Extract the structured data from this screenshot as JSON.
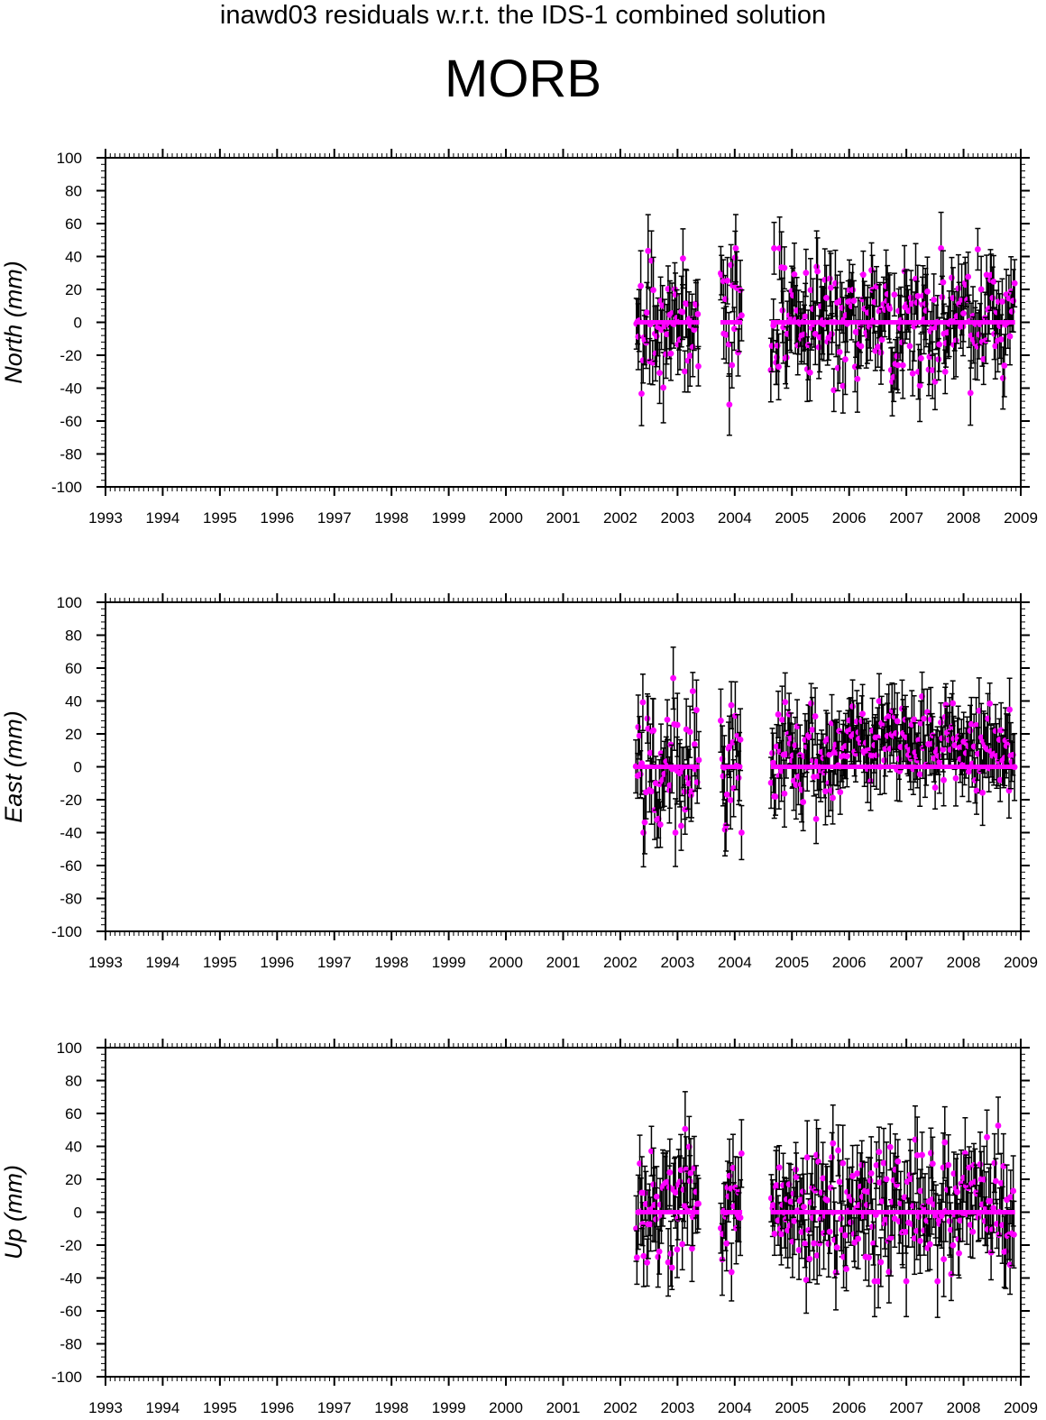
{
  "figure": {
    "supertitle": "inawd03 residuals w.r.t. the IDS-1 combined solution",
    "station": "MORB"
  },
  "colors": {
    "points": "#ff00ff",
    "errorbars": "#000000",
    "axes": "#000000"
  },
  "chart_data": [
    {
      "type": "scatter",
      "ylabel": "North (mm)",
      "xlim": [
        1993,
        2009
      ],
      "ylim": [
        -100,
        100
      ],
      "x_ticks": [
        "1993",
        "1994",
        "1995",
        "1996",
        "1997",
        "1998",
        "1999",
        "2000",
        "2001",
        "2002",
        "2003",
        "2004",
        "2005",
        "2006",
        "2007",
        "2008",
        "2009"
      ],
      "y_ticks": [
        "100",
        "80",
        "60",
        "40",
        "20",
        "0",
        "-20",
        "-40",
        "-60",
        "-80",
        "-100"
      ],
      "data_segments": [
        [
          2002.27,
          2003.38
        ],
        [
          2003.75,
          2004.13
        ],
        [
          2004.63,
          2008.9
        ]
      ],
      "zero_line_segments": [
        [
          2002.27,
          2003.38
        ],
        [
          2003.75,
          2004.13
        ],
        [
          2004.63,
          2008.9
        ]
      ],
      "approx_residual_range": [
        -50,
        45
      ],
      "approx_errorbar_halfwidth_mm": 17
    },
    {
      "type": "scatter",
      "ylabel": "East (mm)",
      "xlim": [
        1993,
        2009
      ],
      "ylim": [
        -100,
        100
      ],
      "x_ticks": [
        "1993",
        "1994",
        "1995",
        "1996",
        "1997",
        "1998",
        "1999",
        "2000",
        "2001",
        "2002",
        "2003",
        "2004",
        "2005",
        "2006",
        "2007",
        "2008",
        "2009"
      ],
      "y_ticks": [
        "100",
        "80",
        "60",
        "40",
        "20",
        "0",
        "-20",
        "-40",
        "-60",
        "-80",
        "-100"
      ],
      "data_segments": [
        [
          2002.27,
          2003.38
        ],
        [
          2003.75,
          2004.13
        ],
        [
          2004.63,
          2008.9
        ]
      ],
      "zero_line_segments": [
        [
          2002.27,
          2003.38
        ],
        [
          2003.75,
          2004.13
        ],
        [
          2004.63,
          2008.9
        ]
      ],
      "approx_residual_range": [
        -40,
        63
      ],
      "approx_errorbar_halfwidth_mm": 16
    },
    {
      "type": "scatter",
      "ylabel": "Up (mm)",
      "xlim": [
        1993,
        2009
      ],
      "ylim": [
        -100,
        100
      ],
      "x_ticks": [
        "1993",
        "1994",
        "1995",
        "1996",
        "1997",
        "1998",
        "1999",
        "2000",
        "2001",
        "2002",
        "2003",
        "2004",
        "2005",
        "2006",
        "2007",
        "2008",
        "2009"
      ],
      "y_ticks": [
        "100",
        "80",
        "60",
        "40",
        "20",
        "0",
        "-20",
        "-40",
        "-60",
        "-80",
        "-100"
      ],
      "data_segments": [
        [
          2002.27,
          2003.38
        ],
        [
          2003.75,
          2004.13
        ],
        [
          2004.63,
          2008.9
        ]
      ],
      "zero_line_segments": [
        [
          2002.27,
          2003.38
        ],
        [
          2003.75,
          2004.13
        ],
        [
          2004.63,
          2008.9
        ]
      ],
      "approx_residual_range": [
        -42,
        58
      ],
      "approx_errorbar_halfwidth_mm": 18
    }
  ]
}
